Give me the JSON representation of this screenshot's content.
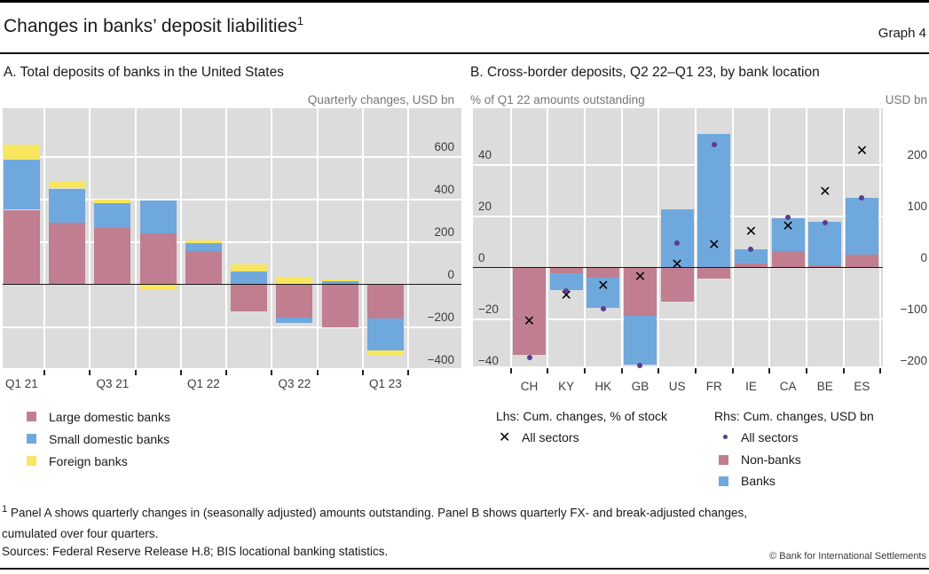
{
  "header": {
    "title": "Changes in banks’ deposit liabilities",
    "title_superscript": "1",
    "graph_label": "Graph 4"
  },
  "colors": {
    "large_domestic_red": "#C07E90",
    "small_domestic_blue": "#6FA8DC",
    "foreign_yellow": "#F8E65E",
    "purple_dot": "#5C3A94",
    "plot_background": "#DCDCDC",
    "gridline": "#FFFFFF",
    "zero_line": "#1A1A1A"
  },
  "panel_a": {
    "title": "A. Total deposits of banks in the United States",
    "unit_label": "Quarterly changes, USD bn",
    "legend": [
      {
        "label": "Large domestic banks",
        "color": "#C07E90"
      },
      {
        "label": "Small domestic banks",
        "color": "#6FA8DC"
      },
      {
        "label": "Foreign banks",
        "color": "#F8E65E"
      }
    ]
  },
  "panel_b": {
    "title": "B. Cross-border deposits, Q2 22–Q1 23, by bank location",
    "unit_label_left": "% of Q1 22 amounts outstanding",
    "unit_label_right": "USD bn",
    "legend_left": {
      "title": "Lhs: Cum. changes, % of stock",
      "items": [
        {
          "glyph": "✕",
          "label": "All sectors"
        }
      ]
    },
    "legend_right": {
      "title": "Rhs: Cum. changes, USD bn",
      "items": [
        {
          "symbol": "dot",
          "color": "#5C3A94",
          "label": "All sectors"
        },
        {
          "symbol": "square",
          "color": "#C07E90",
          "label": "Non-banks"
        },
        {
          "symbol": "square",
          "color": "#6FA8DC",
          "label": "Banks"
        }
      ]
    }
  },
  "chart_data": [
    {
      "type": "bar",
      "stacked": true,
      "title": "A. Total deposits of banks in the United States",
      "subtitle": "Quarterly changes, USD bn",
      "categories": [
        "Q1 21",
        "Q2 21",
        "Q3 21",
        "Q4 21",
        "Q1 22",
        "Q2 22",
        "Q3 22",
        "Q4 22",
        "Q1 23"
      ],
      "x_labels_shown": [
        "Q1 21",
        "",
        "Q3 21",
        "",
        "Q1 22",
        "",
        "Q3 22",
        "",
        "Q1 23"
      ],
      "series": [
        {
          "name": "Large domestic banks",
          "color": "#C07E90",
          "values": [
            350,
            290,
            266,
            238,
            157,
            -129,
            -155,
            -202,
            -160
          ]
        },
        {
          "name": "Small domestic banks",
          "color": "#6FA8DC",
          "values": [
            235,
            160,
            114,
            156,
            36,
            62,
            -26,
            15,
            -152
          ]
        },
        {
          "name": "Foreign banks",
          "color": "#F8E65E",
          "values": [
            72,
            36,
            18,
            -28,
            14,
            33,
            35,
            8,
            -25
          ]
        }
      ],
      "ylabel": "USD bn",
      "yticks": [
        {
          "v": 600,
          "label": "600"
        },
        {
          "v": 400,
          "label": "400"
        },
        {
          "v": 200,
          "label": "200"
        },
        {
          "v": 0,
          "label": "0"
        },
        {
          "v": -200,
          "label": "−200"
        },
        {
          "v": -400,
          "label": "−400"
        }
      ],
      "ylim": [
        -410,
        827
      ],
      "grid": true,
      "zero_line": true,
      "legend_position": "bottom-left"
    },
    {
      "type": "bar",
      "stacked": true,
      "title": "B. Cross-border deposits, Q2 22–Q1 23, by bank location",
      "subtitle_left": "% of Q1 22 amounts outstanding",
      "subtitle_right": "USD bn",
      "categories": [
        "CH",
        "KY",
        "HK",
        "GB",
        "US",
        "FR",
        "IE",
        "CA",
        "BE",
        "ES"
      ],
      "series": [
        {
          "name": "Non-banks",
          "axis": "lhs",
          "color": "#C07E90",
          "values": [
            -34,
            -2.3,
            -3.8,
            -18.7,
            -13.2,
            -4.3,
            1.7,
            6.3,
            0.9,
            5.2
          ]
        },
        {
          "name": "Banks",
          "axis": "lhs",
          "color": "#6FA8DC",
          "values": [
            0,
            -6.3,
            -11.9,
            -18.9,
            22.8,
            52,
            5.4,
            13,
            16.9,
            21.8
          ]
        }
      ],
      "markers": [
        {
          "name": "All sectors",
          "axis": "lhs",
          "symbol": "x",
          "glyph": "✕",
          "values": [
            -21,
            -11.2,
            -7.2,
            -3.8,
            0.9,
            8.4,
            13.8,
            15.9,
            29.1,
            45.1
          ]
        },
        {
          "name": "All sectors",
          "axis": "rhs",
          "symbol": "dot",
          "color": "#5C3A94",
          "values": [
            -175,
            -46,
            -80,
            -190,
            47,
            239,
            36,
            97,
            88,
            135
          ]
        }
      ],
      "yticks_left": [
        {
          "v": 40,
          "label": "40"
        },
        {
          "v": 20,
          "label": "20"
        },
        {
          "v": 0,
          "label": "0"
        },
        {
          "v": -20,
          "label": "−20"
        },
        {
          "v": -40,
          "label": "−40"
        }
      ],
      "yticks_right": [
        {
          "v": 200,
          "label": "200"
        },
        {
          "v": 100,
          "label": "100"
        },
        {
          "v": 0,
          "label": "0"
        },
        {
          "v": -100,
          "label": "−100"
        },
        {
          "v": -200,
          "label": "−200"
        }
      ],
      "ylim_left": [
        -38.5,
        62
      ],
      "rhs_units_per_lhs_unit": 5,
      "grid": true,
      "zero_line": true,
      "legend_position": "bottom"
    }
  ],
  "footnote": {
    "marker": "1",
    "line1": "Panel A shows quarterly changes in (seasonally adjusted) amounts outstanding. Panel B shows quarterly FX- and break-adjusted changes,",
    "line2": "cumulated over four quarters."
  },
  "sources": "Sources: Federal Reserve Release H.8; BIS locational banking statistics.",
  "copyright": "© Bank for International Settlements"
}
